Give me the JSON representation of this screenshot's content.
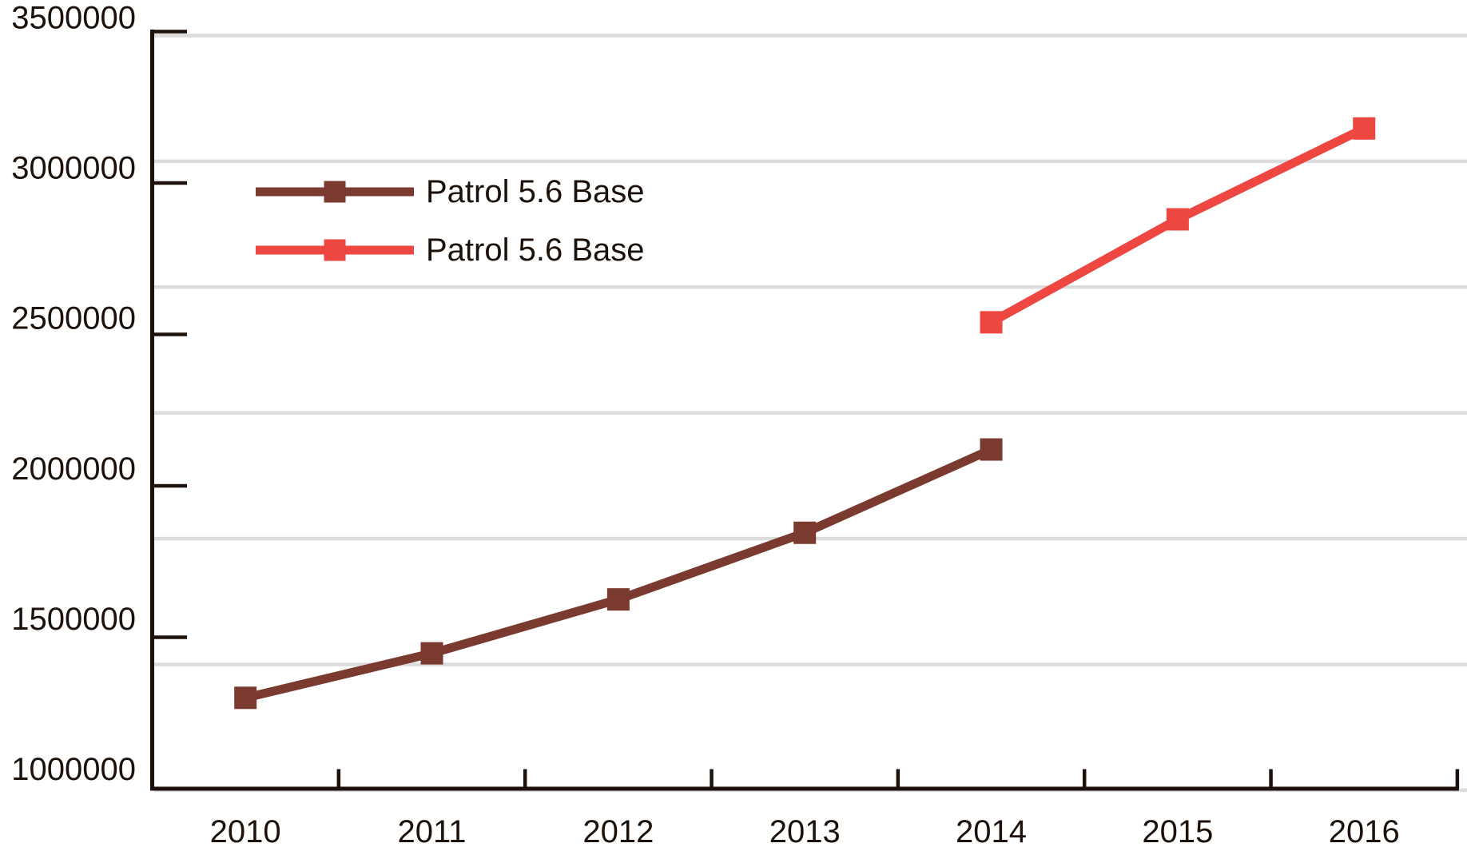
{
  "chart_data": {
    "type": "line",
    "title": "",
    "xlabel": "",
    "ylabel": "",
    "categories": [
      "2010",
      "2011",
      "2012",
      "2013",
      "2014",
      "2015",
      "2016"
    ],
    "series": [
      {
        "name": "Patrol 5.6 Base",
        "color": "#7a3a30",
        "marker": "square",
        "x": [
          "2010",
          "2011",
          "2012",
          "2013",
          "2014"
        ],
        "values": [
          1300000,
          1447000,
          1625000,
          1845000,
          2120000
        ]
      },
      {
        "name": "Patrol 5.6 Base",
        "color": "#ee4741",
        "marker": "square",
        "x": [
          "2014",
          "2015",
          "2016"
        ],
        "values": [
          2540000,
          2880000,
          3180000
        ]
      }
    ],
    "ylim": [
      1000000,
      3500000
    ],
    "y_ticks": [
      3500000,
      3000000,
      2500000,
      2000000,
      1500000,
      1000000
    ],
    "y_tick_labels": [
      "3500000",
      "3000000",
      "2500000",
      "2000000",
      "1500000",
      "1000000"
    ],
    "grid": "on",
    "gridline_note": "horizontal light-gray gridlines dividing plot into 6 equal bands, offset from labeled y-ticks",
    "legend_position": "upper-left inside plot area"
  },
  "colors": {
    "background": "#ffffff",
    "axis_ink": "#1c120b",
    "text": "#1c120b",
    "gridline": "#dcdcdc"
  }
}
